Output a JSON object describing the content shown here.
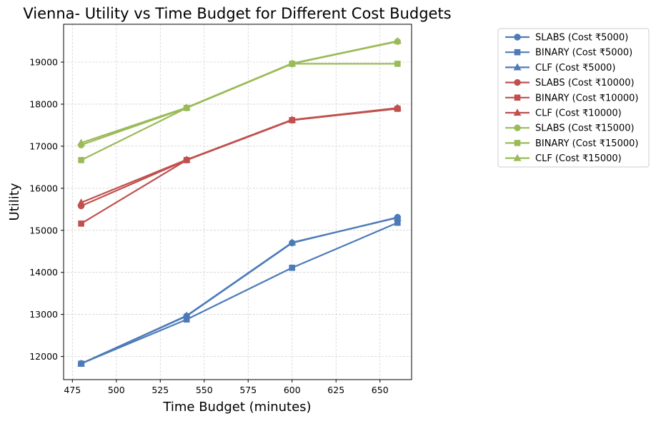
{
  "chart_data": {
    "type": "line",
    "title": "Vienna- Utility vs Time Budget for Different Cost Budgets",
    "xlabel": "Time Budget (minutes)",
    "ylabel": "Utility",
    "xlim": [
      470,
      668
    ],
    "ylim": [
      11450,
      19900
    ],
    "xticks": [
      475,
      500,
      525,
      550,
      575,
      600,
      625,
      650
    ],
    "yticks": [
      12000,
      13000,
      14000,
      15000,
      16000,
      17000,
      18000,
      19000
    ],
    "grid": true,
    "legend_position": "outside-right",
    "x": [
      480,
      540,
      600,
      660
    ],
    "series": [
      {
        "name": "SLABS (Cost ₹5000)",
        "marker": "circle",
        "color": "#4c7bb8",
        "values": [
          11830,
          12960,
          14700,
          15310
        ]
      },
      {
        "name": "BINARY (Cost ₹5000)",
        "marker": "square",
        "color": "#4c7bb8",
        "values": [
          11830,
          12880,
          14110,
          15180
        ]
      },
      {
        "name": "CLF (Cost ₹5000)",
        "marker": "triangle",
        "color": "#4c7bb8",
        "values": [
          11830,
          12970,
          14710,
          15300
        ]
      },
      {
        "name": "SLABS (Cost ₹10000)",
        "marker": "circle",
        "color": "#c0504d",
        "values": [
          15580,
          16670,
          17620,
          17900
        ]
      },
      {
        "name": "BINARY (Cost ₹10000)",
        "marker": "square",
        "color": "#c0504d",
        "values": [
          15160,
          16670,
          17620,
          17890
        ]
      },
      {
        "name": "CLF (Cost ₹10000)",
        "marker": "triangle",
        "color": "#c0504d",
        "values": [
          15660,
          16680,
          17630,
          17910
        ]
      },
      {
        "name": "SLABS (Cost ₹15000)",
        "marker": "circle",
        "color": "#9bbb59",
        "values": [
          17030,
          17910,
          18960,
          19490
        ]
      },
      {
        "name": "BINARY (Cost ₹15000)",
        "marker": "square",
        "color": "#9bbb59",
        "values": [
          16670,
          17910,
          18960,
          18960
        ]
      },
      {
        "name": "CLF (Cost ₹15000)",
        "marker": "triangle",
        "color": "#9bbb59",
        "values": [
          17080,
          17920,
          18970,
          19500
        ]
      }
    ]
  }
}
